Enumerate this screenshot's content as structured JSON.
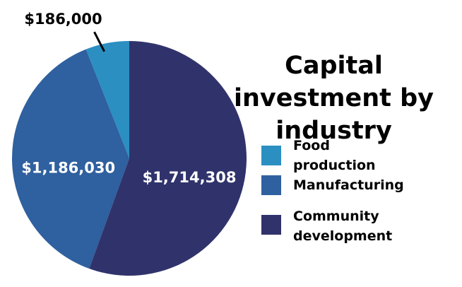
{
  "chart_data": {
    "type": "pie",
    "title": "Capital investment by industry",
    "categories": [
      "Food production",
      "Manufacturing",
      "Community development"
    ],
    "values": [
      186000,
      1186030,
      1714308
    ],
    "value_labels": [
      "$186,000",
      "$1,186,030",
      "$1,714,308"
    ],
    "colors": [
      "#2b8fc2",
      "#2f609f",
      "#30336b"
    ]
  }
}
